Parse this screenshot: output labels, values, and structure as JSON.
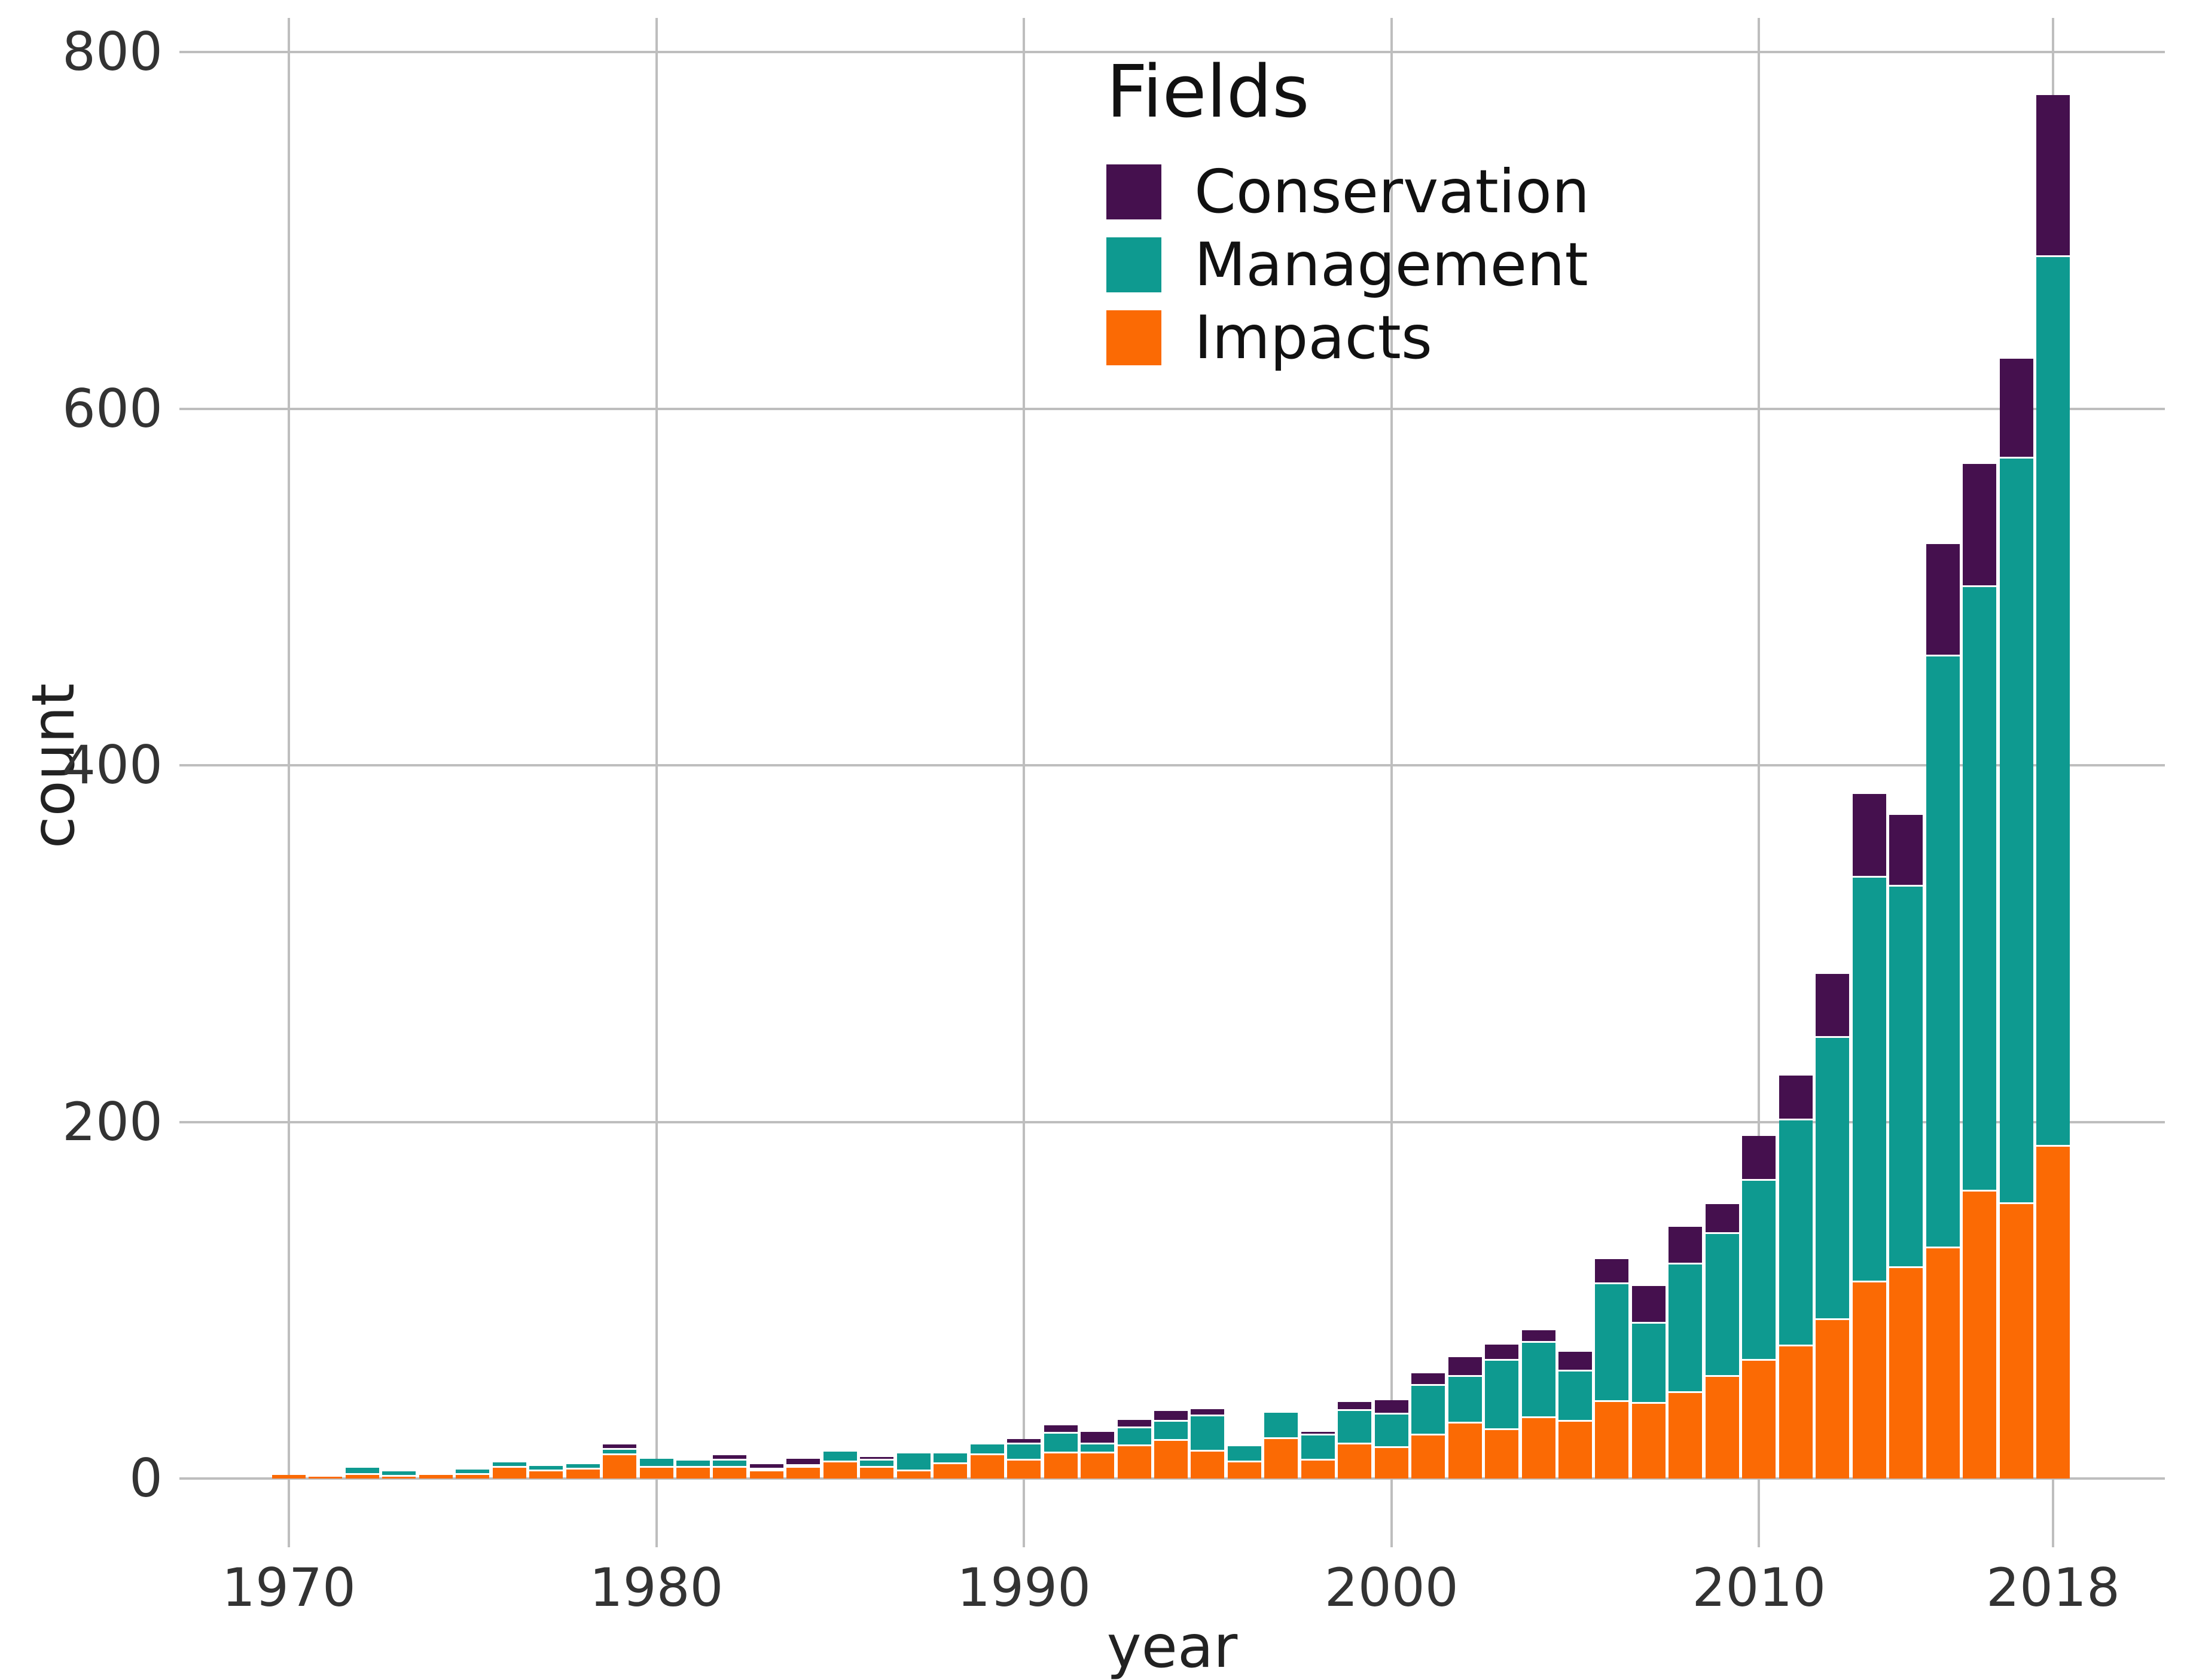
{
  "chart_data": {
    "type": "bar",
    "stacked": true,
    "legend_title": "Fields",
    "xlabel": "year",
    "ylabel": "count",
    "ylim": [
      0,
      800
    ],
    "y_ticks": [
      0,
      200,
      400,
      600,
      800
    ],
    "x_ticks": [
      1970,
      1980,
      1990,
      2000,
      2010,
      2018
    ],
    "grid": true,
    "legend_position": "top-center-inside",
    "background_color": "#ffffff",
    "gridline_color": "#bebebe",
    "text_color": "#333333",
    "x": [
      1970,
      1971,
      1972,
      1973,
      1974,
      1975,
      1976,
      1977,
      1978,
      1979,
      1980,
      1981,
      1982,
      1983,
      1984,
      1985,
      1986,
      1987,
      1988,
      1989,
      1990,
      1991,
      1992,
      1993,
      1994,
      1995,
      1996,
      1997,
      1998,
      1999,
      2000,
      2001,
      2002,
      2003,
      2004,
      2005,
      2006,
      2007,
      2008,
      2009,
      2010,
      2011,
      2012,
      2013,
      2014,
      2015,
      2016,
      2017,
      2018
    ],
    "series": [
      {
        "name": "Conservation",
        "color": "#45104e",
        "values": [
          0,
          0,
          0,
          0,
          0,
          0,
          0,
          0,
          0,
          2,
          0,
          0,
          2,
          2,
          3,
          0,
          1,
          0,
          0,
          0,
          2,
          4,
          6,
          4,
          5,
          3,
          0,
          0,
          1,
          4,
          7,
          6,
          10,
          8,
          6,
          10,
          13,
          20,
          20,
          16,
          24,
          24,
          35,
          46,
          39,
          62,
          68,
          55,
          90
        ]
      },
      {
        "name": "Management",
        "color": "#0e9a90",
        "values": [
          0,
          0,
          3,
          2,
          0,
          2,
          2,
          2,
          2,
          3,
          4,
          3,
          4,
          1,
          1,
          5,
          4,
          9,
          5,
          5,
          9,
          11,
          5,
          10,
          11,
          20,
          8,
          14,
          14,
          19,
          19,
          28,
          26,
          39,
          42,
          28,
          66,
          45,
          72,
          80,
          101,
          127,
          158,
          227,
          214,
          332,
          339,
          418,
          499
        ]
      },
      {
        "name": "Impacts",
        "color": "#fb6a04",
        "values": [
          2,
          1,
          2,
          1,
          2,
          2,
          6,
          4,
          5,
          13,
          6,
          6,
          6,
          4,
          6,
          9,
          6,
          4,
          8,
          13,
          10,
          14,
          14,
          18,
          21,
          15,
          9,
          22,
          10,
          19,
          17,
          24,
          31,
          27,
          34,
          32,
          43,
          42,
          48,
          57,
          66,
          74,
          89,
          110,
          118,
          129,
          161,
          154,
          186
        ]
      }
    ],
    "totals_note": "bars stacked bottom-to-top as Impacts, Management, Conservation"
  }
}
